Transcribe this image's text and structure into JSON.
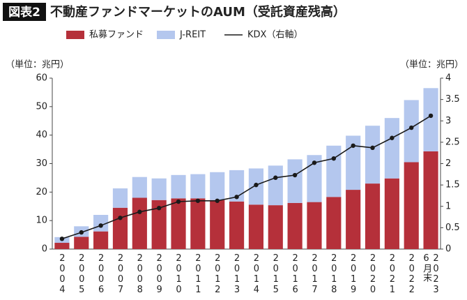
{
  "chart_data": {
    "type": "bar",
    "figure_label": "図表2",
    "title": "不動産ファンドマーケットのAUM（受託資産残高）",
    "ylabel": "（単位：兆円）",
    "y2label": "（単位：兆円）",
    "categories": [
      "2004",
      "2005",
      "2006",
      "2007",
      "2008",
      "2009",
      "2010",
      "2011",
      "2012",
      "2013",
      "2014",
      "2015",
      "2016",
      "2017",
      "2018",
      "2019",
      "2020",
      "2021",
      "2022",
      "2023 6月末"
    ],
    "series": [
      {
        "name": "私募ファンド",
        "color": "#b5303a",
        "values": [
          2.2,
          4.3,
          6.2,
          14.5,
          18,
          17.2,
          17.8,
          17.8,
          17.2,
          16.7,
          15.6,
          15.4,
          16.2,
          16.5,
          18.3,
          20.8,
          23,
          24.8,
          30.5,
          34.3
        ]
      },
      {
        "name": "J-REIT",
        "color": "#b4c7ee",
        "values": [
          2.0,
          3.7,
          5.8,
          6.8,
          7.3,
          7.6,
          8.2,
          8.5,
          9.8,
          11.0,
          12.7,
          13.9,
          15.3,
          16.5,
          18.0,
          19.0,
          20.3,
          21.2,
          21.8,
          22.2
        ]
      },
      {
        "name": "KDX（右軸）",
        "color": "#1a1a1a",
        "axis": "y2",
        "values": [
          0.24,
          0.39,
          0.55,
          0.73,
          0.87,
          0.96,
          1.11,
          1.13,
          1.13,
          1.22,
          1.5,
          1.67,
          1.73,
          2.02,
          2.12,
          2.42,
          2.37,
          2.6,
          2.84,
          3.12
        ]
      }
    ],
    "ylim": [
      0,
      60
    ],
    "yticks": [
      0,
      10,
      20,
      30,
      40,
      50,
      60
    ],
    "y2lim": [
      0,
      4
    ],
    "y2ticks": [
      0,
      0.5,
      1,
      1.5,
      2,
      2.5,
      3,
      3.5,
      4
    ]
  }
}
